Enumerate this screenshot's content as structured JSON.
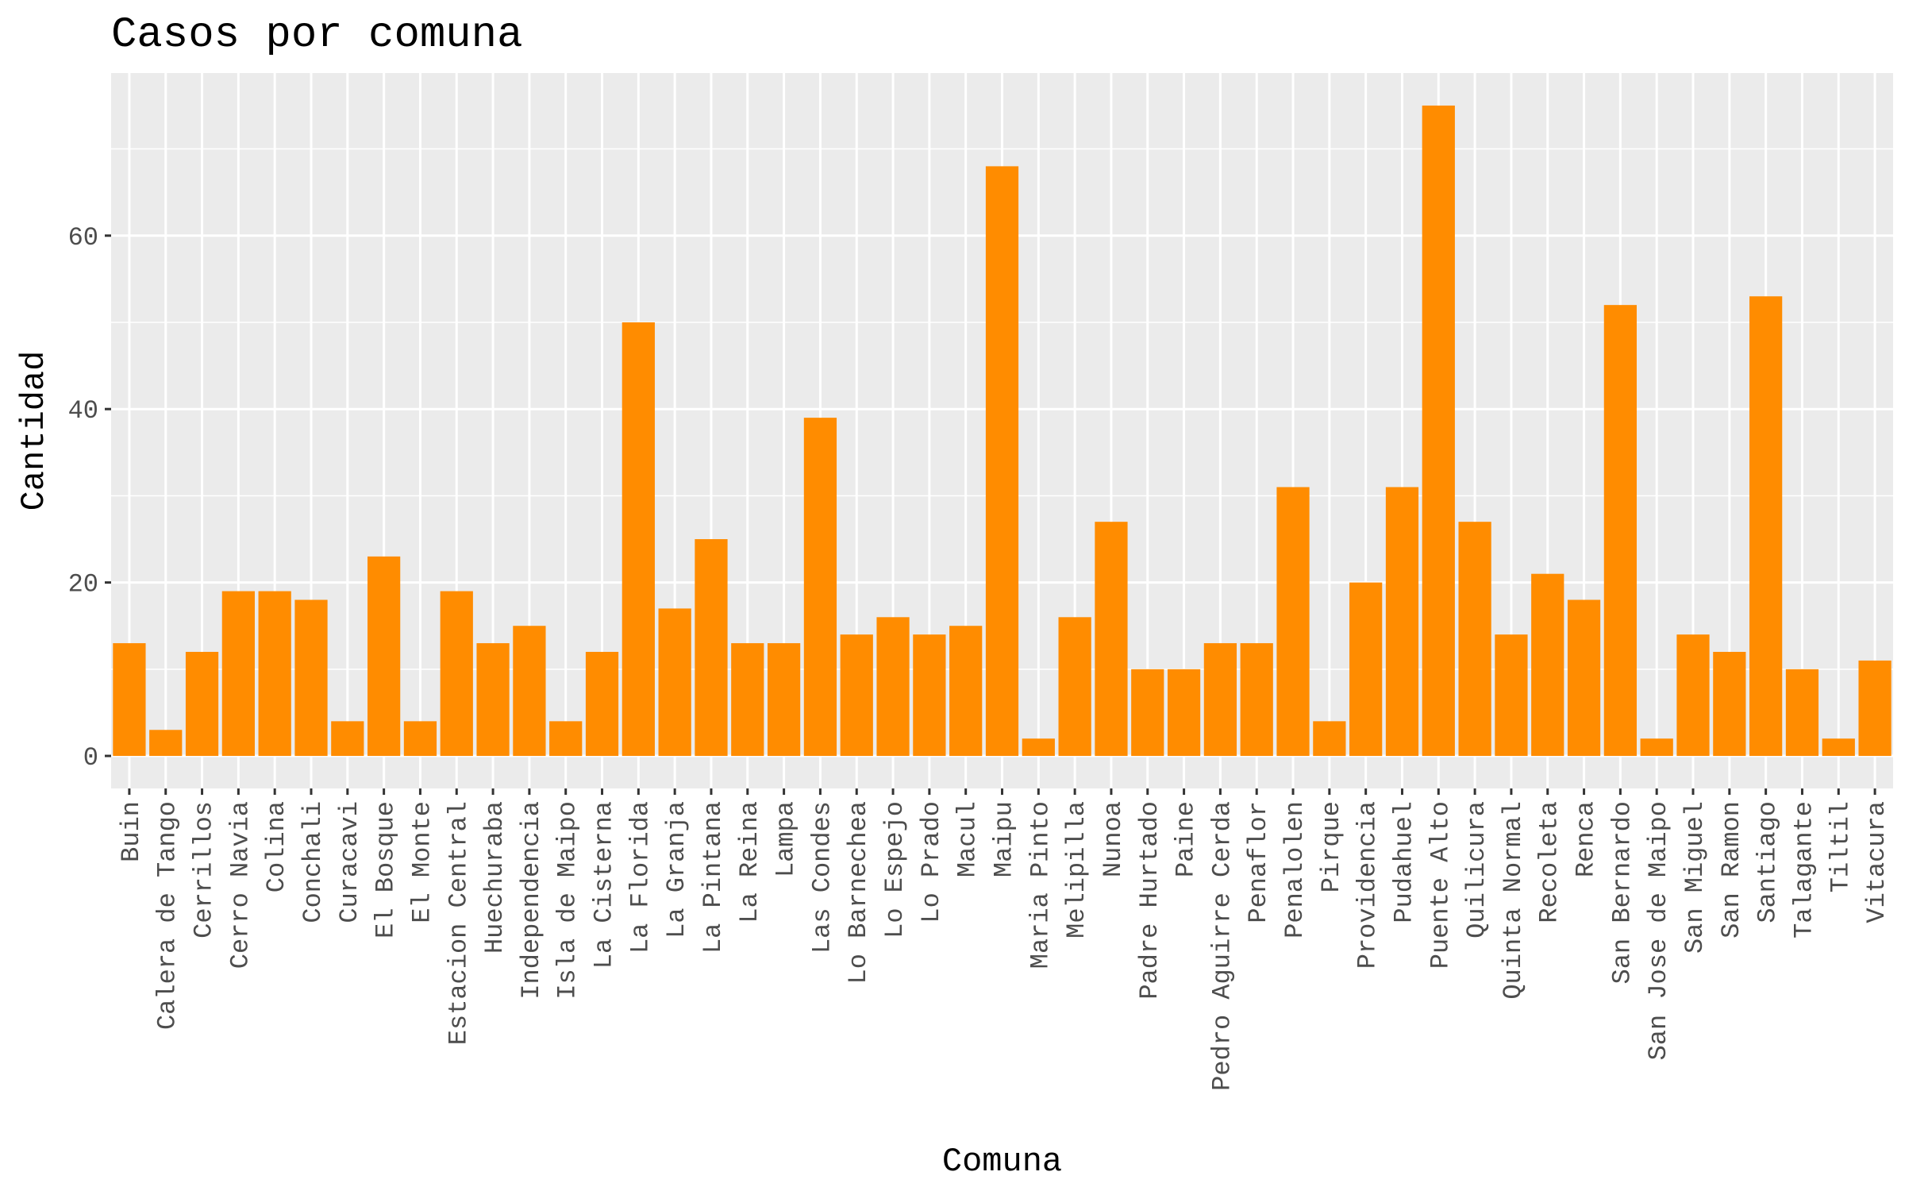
{
  "chart_data": {
    "type": "bar",
    "title": "Casos por comuna",
    "xlabel": "Comuna",
    "ylabel": "Cantidad",
    "ylim": [
      -3.75,
      78.75
    ],
    "yticks": [
      0,
      20,
      40,
      60
    ],
    "grid": true,
    "colors": {
      "bar": "#ff8c00",
      "panel": "#ebebeb",
      "grid": "#ffffff",
      "tick_text": "#4d4d4d",
      "tick_mark": "#333333"
    },
    "categories": [
      "Buin",
      "Calera de Tango",
      "Cerrillos",
      "Cerro Navia",
      "Colina",
      "Conchali",
      "Curacavi",
      "El Bosque",
      "El Monte",
      "Estacion Central",
      "Huechuraba",
      "Independencia",
      "Isla de Maipo",
      "La Cisterna",
      "La Florida",
      "La Granja",
      "La Pintana",
      "La Reina",
      "Lampa",
      "Las Condes",
      "Lo Barnechea",
      "Lo Espejo",
      "Lo Prado",
      "Macul",
      "Maipu",
      "Maria Pinto",
      "Melipilla",
      "Nunoa",
      "Padre Hurtado",
      "Paine",
      "Pedro Aguirre Cerda",
      "Penaflor",
      "Penalolen",
      "Pirque",
      "Providencia",
      "Pudahuel",
      "Puente Alto",
      "Quilicura",
      "Quinta Normal",
      "Recoleta",
      "Renca",
      "San Bernardo",
      "San Jose de Maipo",
      "San Miguel",
      "San Ramon",
      "Santiago",
      "Talagante",
      "Tiltil",
      "Vitacura"
    ],
    "values": [
      13,
      3,
      12,
      19,
      19,
      18,
      4,
      23,
      4,
      19,
      13,
      15,
      4,
      12,
      50,
      17,
      25,
      13,
      13,
      39,
      14,
      16,
      14,
      15,
      68,
      2,
      16,
      27,
      10,
      10,
      13,
      13,
      31,
      4,
      20,
      31,
      75,
      27,
      14,
      21,
      18,
      52,
      2,
      14,
      12,
      53,
      10,
      2,
      11
    ]
  }
}
